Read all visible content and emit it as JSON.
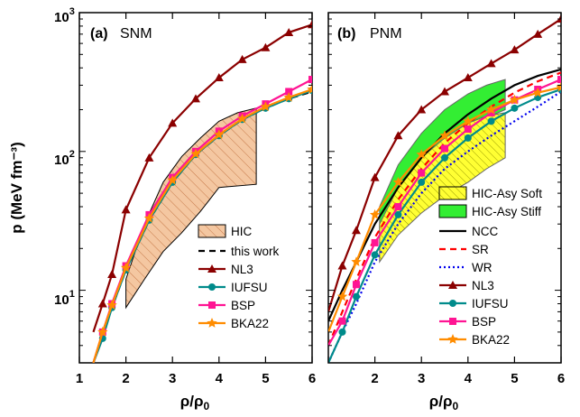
{
  "chart_data": [
    {
      "panel_label": "(a)",
      "panel_title": "SNM",
      "type": "line",
      "xlabel": "ρ/ρ₀",
      "xlim": [
        1,
        6
      ],
      "ylim": [
        3,
        1000
      ],
      "y_scale": "log",
      "x_ticks": [
        "1",
        "2",
        "3",
        "4",
        "5",
        "6"
      ],
      "legend_position": "bottom-right",
      "bands": [
        {
          "name": "HIC",
          "color": "#f4c7a1",
          "hatch": true,
          "upper": [
            [
              2.0,
              12
            ],
            [
              2.4,
              30
            ],
            [
              2.8,
              60
            ],
            [
              3.2,
              92
            ],
            [
              3.6,
              125
            ],
            [
              4.0,
              165
            ],
            [
              4.4,
              190
            ],
            [
              4.8,
              205
            ]
          ],
          "lower": [
            [
              2.0,
              7.5
            ],
            [
              2.4,
              12
            ],
            [
              2.8,
              19
            ],
            [
              3.2,
              26
            ],
            [
              3.6,
              37
            ],
            [
              3.8,
              45
            ],
            [
              4.0,
              55
            ],
            [
              4.8,
              58
            ]
          ]
        }
      ],
      "series": [
        {
          "name": "this work",
          "color": "#000000",
          "dash": true,
          "marker": "none",
          "x": [
            1.3,
            1.5,
            1.7,
            2.0,
            2.5,
            3.0,
            3.5,
            4.0,
            4.5,
            5.0,
            5.5,
            6.0
          ],
          "y": [
            3,
            4.8,
            7.5,
            14,
            32,
            60,
            95,
            130,
            170,
            205,
            240,
            270
          ]
        },
        {
          "name": "NL3",
          "color": "#8b0000",
          "marker": "triangle",
          "x": [
            1.3,
            1.5,
            1.7,
            2.0,
            2.5,
            3.0,
            3.5,
            4.0,
            4.5,
            5.0,
            5.5,
            6.0
          ],
          "y": [
            5,
            8,
            13,
            38,
            90,
            160,
            240,
            340,
            460,
            560,
            720,
            820
          ]
        },
        {
          "name": "IUFSU",
          "color": "#008b8b",
          "marker": "circle",
          "x": [
            1.3,
            1.5,
            1.7,
            2.0,
            2.5,
            3.0,
            3.5,
            4.0,
            4.5,
            5.0,
            5.5,
            6.0
          ],
          "y": [
            3,
            4.5,
            7.5,
            14,
            32,
            60,
            95,
            130,
            170,
            205,
            240,
            275
          ]
        },
        {
          "name": "BSP",
          "color": "#ff1493",
          "marker": "square",
          "x": [
            1.3,
            1.5,
            1.7,
            2.0,
            2.5,
            3.0,
            3.5,
            4.0,
            4.5,
            5.0,
            5.5,
            6.0
          ],
          "y": [
            3,
            5,
            8,
            15,
            35,
            65,
            100,
            140,
            180,
            220,
            270,
            330
          ]
        },
        {
          "name": "BKA22",
          "color": "#ff8c00",
          "marker": "star",
          "x": [
            1.3,
            1.5,
            1.7,
            2.0,
            2.5,
            3.0,
            3.5,
            4.0,
            4.5,
            5.0,
            5.5,
            6.0
          ],
          "y": [
            3,
            5,
            7.8,
            14.5,
            33,
            62,
            96,
            132,
            172,
            210,
            245,
            280
          ]
        }
      ]
    },
    {
      "panel_label": "(b)",
      "panel_title": "PNM",
      "type": "line",
      "xlabel": "ρ/ρ₀",
      "xlim": [
        1,
        6
      ],
      "ylim": [
        3,
        1000
      ],
      "y_scale": "log",
      "x_ticks": [
        "2",
        "3",
        "4",
        "5",
        "6"
      ],
      "legend_position": "bottom-right",
      "bands": [
        {
          "name": "HIC-Asy Stiff",
          "color": "#33ee33",
          "hatch": false,
          "upper": [
            [
              2.1,
              40
            ],
            [
              2.5,
              80
            ],
            [
              3.0,
              135
            ],
            [
              3.5,
              200
            ],
            [
              4.0,
              260
            ],
            [
              4.4,
              300
            ],
            [
              4.8,
              330
            ]
          ],
          "lower": [
            [
              2.1,
              25
            ],
            [
              2.5,
              40
            ],
            [
              3.0,
              70
            ],
            [
              3.5,
              105
            ],
            [
              4.0,
              145
            ],
            [
              4.4,
              175
            ],
            [
              4.8,
              200
            ]
          ]
        },
        {
          "name": "HIC-Asy Soft",
          "color": "#ffff33",
          "hatch": true,
          "upper": [
            [
              2.1,
              30
            ],
            [
              2.5,
              55
            ],
            [
              3.0,
              90
            ],
            [
              3.5,
              125
            ],
            [
              4.0,
              160
            ],
            [
              4.4,
              180
            ],
            [
              4.8,
              190
            ]
          ],
          "lower": [
            [
              2.1,
              16
            ],
            [
              2.5,
              25
            ],
            [
              3.0,
              36
            ],
            [
              3.5,
              48
            ],
            [
              4.0,
              60
            ],
            [
              4.4,
              75
            ],
            [
              4.8,
              90
            ]
          ]
        }
      ],
      "series": [
        {
          "name": "NCC",
          "color": "#000000",
          "dash": false,
          "marker": "none",
          "x": [
            1.0,
            1.3,
            1.6,
            2.0,
            2.5,
            3.0,
            3.5,
            4.0,
            4.5,
            5.0,
            5.5,
            6.0
          ],
          "y": [
            6,
            10,
            16,
            30,
            55,
            90,
            135,
            185,
            240,
            300,
            350,
            390
          ]
        },
        {
          "name": "SR",
          "color": "#ff0000",
          "dash": true,
          "marker": "none",
          "x": [
            1.0,
            1.3,
            1.6,
            2.0,
            2.5,
            3.0,
            3.5,
            4.0,
            4.5,
            5.0,
            5.5,
            6.0
          ],
          "y": [
            4,
            7,
            12,
            24,
            45,
            75,
            115,
            160,
            210,
            265,
            320,
            370
          ]
        },
        {
          "name": "WR",
          "color": "#0000ee",
          "dotted": true,
          "marker": "none",
          "x": [
            1.0,
            1.3,
            1.6,
            2.0,
            2.5,
            3.0,
            3.5,
            4.0,
            4.5,
            5.0,
            5.5,
            6.0
          ],
          "y": [
            3,
            5,
            8,
            16,
            30,
            50,
            75,
            100,
            130,
            165,
            210,
            270
          ]
        },
        {
          "name": "NL3",
          "color": "#8b0000",
          "marker": "triangle",
          "x": [
            1.0,
            1.3,
            1.6,
            2.0,
            2.5,
            3.0,
            3.5,
            4.0,
            4.5,
            5.0,
            5.5,
            6.0
          ],
          "y": [
            7,
            15,
            27,
            65,
            130,
            200,
            270,
            340,
            430,
            540,
            700,
            900
          ]
        },
        {
          "name": "IUFSU",
          "color": "#008b8b",
          "marker": "circle",
          "x": [
            1.0,
            1.3,
            1.6,
            2.0,
            2.5,
            3.0,
            3.5,
            4.0,
            4.5,
            5.0,
            5.5,
            6.0
          ],
          "y": [
            3,
            5,
            9,
            18,
            35,
            60,
            90,
            125,
            165,
            205,
            245,
            280
          ]
        },
        {
          "name": "BSP",
          "color": "#ff1493",
          "marker": "square",
          "x": [
            1.0,
            1.3,
            1.6,
            2.0,
            2.5,
            3.0,
            3.5,
            4.0,
            4.5,
            5.0,
            5.5,
            6.0
          ],
          "y": [
            4,
            6,
            11,
            22,
            40,
            70,
            105,
            145,
            190,
            235,
            280,
            330
          ]
        },
        {
          "name": "BKA22",
          "color": "#ff8c00",
          "marker": "star",
          "x": [
            1.0,
            1.3,
            1.6,
            2.0,
            2.5,
            3.0,
            3.5,
            4.0,
            4.5,
            5.0,
            5.5,
            6.0
          ],
          "y": [
            5,
            9,
            16,
            35,
            60,
            95,
            130,
            165,
            200,
            235,
            265,
            290
          ]
        }
      ]
    }
  ],
  "shared": {
    "ylabel": "p (MeV fm⁻³)",
    "y_ticks": [
      "10¹",
      "10²",
      "10³"
    ]
  }
}
